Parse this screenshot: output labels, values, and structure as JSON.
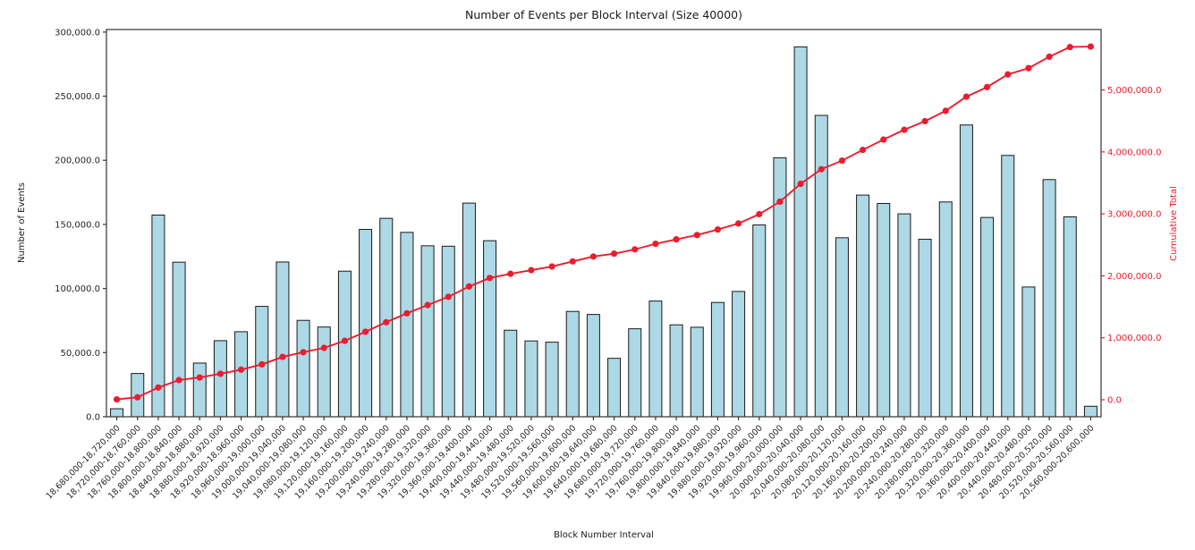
{
  "figure": {
    "title": "Number of Events per Block Interval (Size 40000)"
  },
  "chart_data": {
    "type": "bar",
    "title": "Number of Events per Block Interval (Size 40000)",
    "xlabel": "Block Number Interval",
    "ylabel": "Number of Events",
    "y2label": "Cumulative Total",
    "grid": false,
    "legend": "none",
    "categories": [
      "18,680,000-18,720,000",
      "18,720,000-18,760,000",
      "18,760,000-18,800,000",
      "18,800,000-18,840,000",
      "18,840,000-18,880,000",
      "18,880,000-18,920,000",
      "18,920,000-18,960,000",
      "18,960,000-19,000,000",
      "19,000,000-19,040,000",
      "19,040,000-19,080,000",
      "19,080,000-19,120,000",
      "19,120,000-19,160,000",
      "19,160,000-19,200,000",
      "19,200,000-19,240,000",
      "19,240,000-19,280,000",
      "19,280,000-19,320,000",
      "19,320,000-19,360,000",
      "19,360,000-19,400,000",
      "19,400,000-19,440,000",
      "19,440,000-19,480,000",
      "19,480,000-19,520,000",
      "19,520,000-19,560,000",
      "19,560,000-19,600,000",
      "19,600,000-19,640,000",
      "19,640,000-19,680,000",
      "19,680,000-19,720,000",
      "19,720,000-19,760,000",
      "19,760,000-19,800,000",
      "19,800,000-19,840,000",
      "19,840,000-19,880,000",
      "19,880,000-19,920,000",
      "19,920,000-19,960,000",
      "19,960,000-20,000,000",
      "20,000,000-20,040,000",
      "20,040,000-20,080,000",
      "20,080,000-20,120,000",
      "20,120,000-20,160,000",
      "20,160,000-20,200,000",
      "20,200,000-20,240,000",
      "20,240,000-20,280,000",
      "20,280,000-20,320,000",
      "20,320,000-20,360,000",
      "20,360,000-20,400,000",
      "20,400,000-20,440,000",
      "20,440,000-20,480,000",
      "20,480,000-20,520,000",
      "20,520,000-20,560,000",
      "20,560,000-20,600,000"
    ],
    "series": [
      {
        "name": "Number of Events",
        "type": "bar",
        "axis": "left",
        "values": [
          6234,
          33741,
          157286,
          120541,
          41877,
          59332,
          66309,
          86073,
          120684,
          75174,
          69982,
          113543,
          146112,
          154748,
          143789,
          133324,
          132976,
          166612,
          137287,
          67489,
          59114,
          58142,
          82153,
          79776,
          45581,
          68611,
          90247,
          71683,
          69803,
          89132,
          97718,
          149577,
          201932,
          288478,
          235019,
          139602,
          172886,
          166347,
          158236,
          138428,
          167519,
          227551,
          155433,
          203817,
          101204,
          184952,
          155879,
          8169
        ]
      },
      {
        "name": "Cumulative Total",
        "type": "line",
        "axis": "right",
        "values": [
          6234,
          39975,
          197261,
          317802,
          359679,
          419011,
          485320,
          571393,
          692077,
          767251,
          837233,
          950776,
          1096888,
          1251636,
          1395425,
          1528749,
          1661725,
          1828337,
          1965624,
          2033113,
          2092227,
          2150369,
          2232522,
          2312298,
          2357879,
          2426490,
          2516737,
          2588420,
          2658223,
          2747355,
          2845073,
          2994650,
          3196582,
          3485060,
          3720079,
          3859681,
          4032567,
          4198914,
          4357150,
          4495578,
          4663097,
          4890648,
          5046081,
          5249898,
          5351102,
          5536054,
          5691933,
          5700102
        ]
      }
    ],
    "left_axis": {
      "ylim": [
        0,
        302000
      ],
      "ticks": [
        {
          "v": 0,
          "label": "0.0"
        },
        {
          "v": 50000,
          "label": "50,000.0"
        },
        {
          "v": 100000,
          "label": "100,000.0"
        },
        {
          "v": 150000,
          "label": "150,000.0"
        },
        {
          "v": 200000,
          "label": "200,000.0"
        },
        {
          "v": 250000,
          "label": "250,000.0"
        },
        {
          "v": 300000,
          "label": "300,000.0"
        }
      ]
    },
    "right_axis": {
      "ylim": [
        -274000,
        5975000
      ],
      "ticks": [
        {
          "v": 0,
          "label": "0.0"
        },
        {
          "v": 1000000,
          "label": "1,000,000.0"
        },
        {
          "v": 2000000,
          "label": "2,000,000.0"
        },
        {
          "v": 3000000,
          "label": "3,000,000.0"
        },
        {
          "v": 4000000,
          "label": "4,000,000.0"
        },
        {
          "v": 5000000,
          "label": "5,000,000.0"
        }
      ]
    },
    "colors": {
      "bar_fill": "#add8e6",
      "bar_edge": "#1a1a1a",
      "line": "#ed1c2e",
      "marker": "#ed1c2e",
      "right_axis_text": "#ed1c2e",
      "axis_text": "#262626",
      "spine": "#333333",
      "background": "#ffffff"
    }
  }
}
